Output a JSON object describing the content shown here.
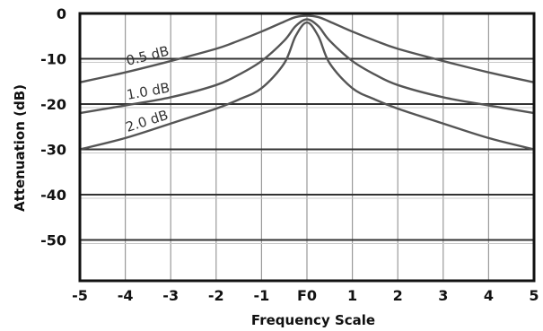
{
  "chart_data": {
    "type": "line",
    "xlabel": "Frequency Scale",
    "ylabel": "Attenuation (dB)",
    "xlim": [
      -5,
      5
    ],
    "ylim": [
      -59,
      0
    ],
    "x_tick_labels": [
      "-5",
      "-4",
      "-3",
      "-2",
      "-1",
      "F0",
      "1",
      "2",
      "3",
      "4",
      "5"
    ],
    "y_tick_labels": [
      "0",
      "-10",
      "-20",
      "-30",
      "-40",
      "-50"
    ],
    "grid": true,
    "series": [
      {
        "name": "0.5 dB",
        "color": "#555555",
        "x": [
          -5,
          -4,
          -3,
          -2,
          -1.5,
          -1,
          -0.5,
          -0.25,
          0,
          0.25,
          0.5,
          1,
          1.5,
          2,
          3,
          4,
          5
        ],
        "y": [
          -15.2,
          -13,
          -10.5,
          -7.8,
          -6,
          -4,
          -1.8,
          -0.8,
          -0.5,
          -0.8,
          -1.8,
          -4,
          -6,
          -7.8,
          -10.5,
          -13,
          -15.2
        ]
      },
      {
        "name": "1.0 dB",
        "color": "#555555",
        "x": [
          -5,
          -4,
          -3,
          -2,
          -1.5,
          -1,
          -0.5,
          -0.25,
          0,
          0.25,
          0.5,
          1,
          1.5,
          2,
          3,
          4,
          5
        ],
        "y": [
          -22,
          -20.3,
          -18.5,
          -15.8,
          -13.5,
          -10.5,
          -6,
          -2.8,
          -1.3,
          -2.8,
          -6,
          -10.5,
          -13.5,
          -15.8,
          -18.5,
          -20.3,
          -22
        ]
      },
      {
        "name": "2.0 dB",
        "color": "#555555",
        "x": [
          -5,
          -4,
          -3,
          -2,
          -1.5,
          -1,
          -0.5,
          -0.25,
          0,
          0.25,
          0.5,
          1,
          1.5,
          2,
          3,
          4,
          5
        ],
        "y": [
          -30,
          -27.5,
          -24.3,
          -21,
          -19,
          -16.5,
          -11,
          -5,
          -2,
          -5,
          -11,
          -16.5,
          -19,
          -21,
          -24.3,
          -27.5,
          -30
        ]
      }
    ]
  }
}
